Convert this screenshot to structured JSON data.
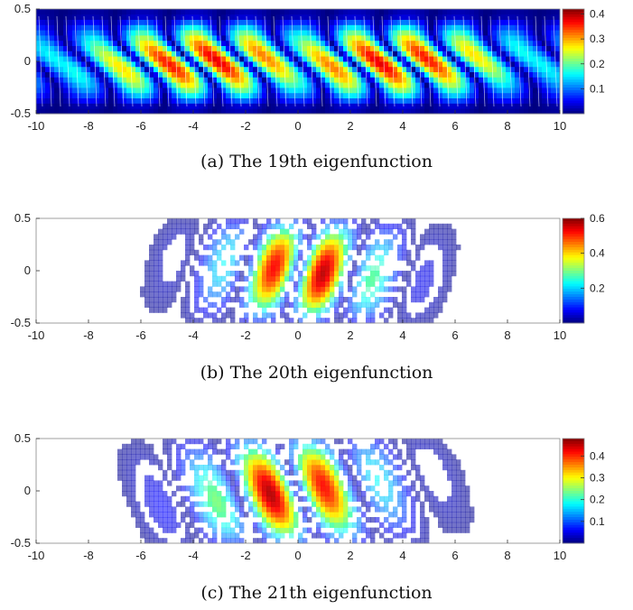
{
  "panels": [
    {
      "id": "a",
      "caption": "(a)  The 19th eigenfunction",
      "variant": "filled",
      "colorbar_ticks": [
        "0.4",
        "0.3",
        "0.2",
        "0.1"
      ],
      "colorbar_values": [
        0.4,
        0.3,
        0.2,
        0.1
      ],
      "colorbar_max": 0.42
    },
    {
      "id": "b",
      "caption": "(b)  The 20th eigenfunction",
      "variant": "lines",
      "colorbar_ticks": [
        "0.6",
        "0.4",
        "0.2"
      ],
      "colorbar_values": [
        0.6,
        0.4,
        0.2
      ],
      "colorbar_max": 0.6
    },
    {
      "id": "c",
      "caption": "(c)  The 21th eigenfunction",
      "variant": "lines",
      "colorbar_ticks": [
        "0.4",
        "0.3",
        "0.2",
        "0.1"
      ],
      "colorbar_values": [
        0.4,
        0.3,
        0.2,
        0.1
      ],
      "colorbar_max": 0.48
    }
  ],
  "chart_data": [
    {
      "type": "heatmap",
      "title": "",
      "xlabel": "",
      "ylabel": "",
      "xlim": [
        -10,
        10
      ],
      "ylim": [
        -0.5,
        0.5
      ],
      "x_ticks": [
        "-10",
        "-8",
        "-6",
        "-4",
        "-2",
        "0",
        "2",
        "4",
        "6",
        "8",
        "10"
      ],
      "y_ticks": [
        "0.5",
        "0",
        "-0.5"
      ],
      "colorbar_range": [
        0,
        0.42
      ],
      "colormap": "jet"
    },
    {
      "type": "heatmap",
      "title": "",
      "xlabel": "",
      "ylabel": "",
      "xlim": [
        -10,
        10
      ],
      "ylim": [
        -0.5,
        0.5
      ],
      "x_ticks": [
        "-10",
        "-8",
        "-6",
        "-4",
        "-2",
        "0",
        "2",
        "4",
        "6",
        "8",
        "10"
      ],
      "y_ticks": [
        "0.5",
        "0",
        "-0.5"
      ],
      "colorbar_range": [
        0,
        0.6
      ],
      "colormap": "jet"
    },
    {
      "type": "heatmap",
      "title": "",
      "xlabel": "",
      "ylabel": "",
      "xlim": [
        -10,
        10
      ],
      "ylim": [
        -0.5,
        0.5
      ],
      "x_ticks": [
        "-10",
        "-8",
        "-6",
        "-4",
        "-2",
        "0",
        "2",
        "4",
        "6",
        "8",
        "10"
      ],
      "y_ticks": [
        "0.5",
        "0",
        "-0.5"
      ],
      "colorbar_range": [
        0,
        0.48
      ],
      "colormap": "jet"
    }
  ]
}
